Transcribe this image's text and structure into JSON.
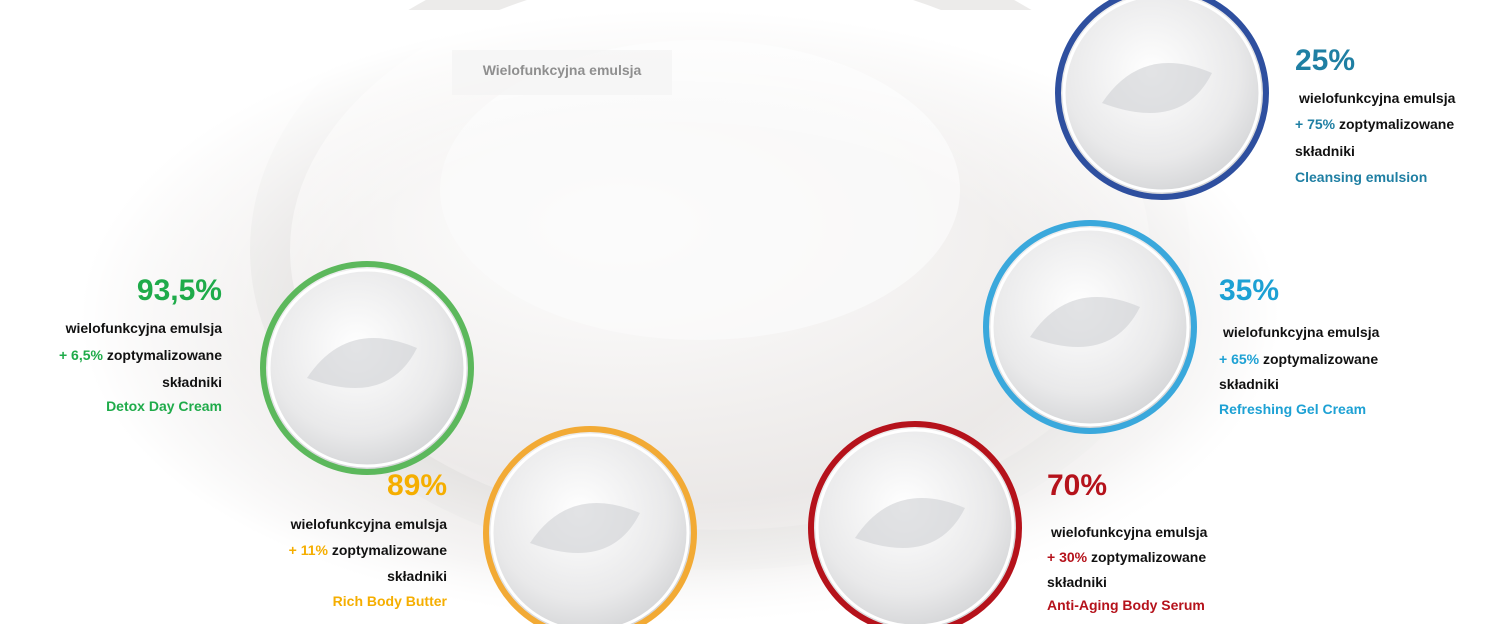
{
  "title": "Wielofunkcyjna emulsja",
  "items": [
    {
      "percent": "93,5%",
      "base": "wielofunkcyjna emulsja",
      "plus": "+ 6,5%",
      "rest": "zoptymalizowane",
      "last": "składniki",
      "name": "Detox Day Cream"
    },
    {
      "percent": "89%",
      "base": "wielofunkcyjna emulsja",
      "plus": "+ 11%",
      "rest": "zoptymalizowane",
      "last": "składniki",
      "name": "Rich Body Butter"
    },
    {
      "percent": "70%",
      "base": "wielofunkcyjna emulsja",
      "plus": "+ 30%",
      "rest": "zoptymalizowane",
      "last": "składniki",
      "name": "Anti-Aging Body Serum"
    },
    {
      "percent": "35%",
      "base": "wielofunkcyjna emulsja",
      "plus": "+ 65%",
      "rest": "zoptymalizowane",
      "last": "składniki",
      "name": "Refreshing Gel Cream"
    },
    {
      "percent": "25%",
      "base": "wielofunkcyjna emulsja",
      "plus": "+ 75%",
      "rest": "zoptymalizowane",
      "last": "składniki",
      "name": "Cleansing emulsion"
    }
  ]
}
